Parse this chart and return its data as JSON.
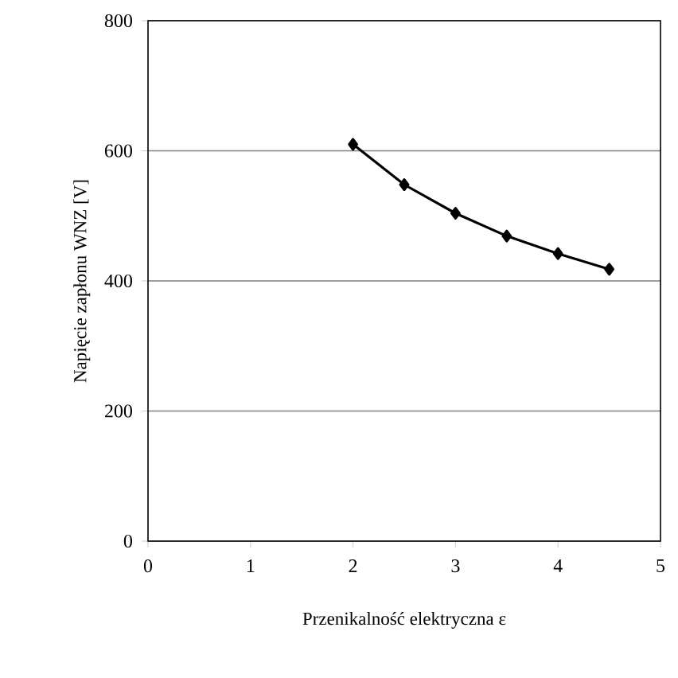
{
  "chart_data": {
    "type": "line",
    "xlabel": "Przenikalność elektryczna ε",
    "ylabel": "Napięcie zapłonu WNZ  [V]",
    "x": [
      2,
      2.5,
      3,
      3.5,
      4,
      4.5
    ],
    "series": [
      {
        "color": "#000000",
        "values": [
          610,
          548,
          504,
          469,
          442,
          418
        ]
      }
    ],
    "xlim": [
      0,
      5
    ],
    "xticks": [
      0,
      1,
      2,
      3,
      4,
      5
    ],
    "ylim": [
      0,
      800
    ],
    "yticks": [
      0,
      200,
      400,
      600,
      800
    ],
    "grid": "y",
    "marker": "diamond",
    "line_style": "solid"
  }
}
